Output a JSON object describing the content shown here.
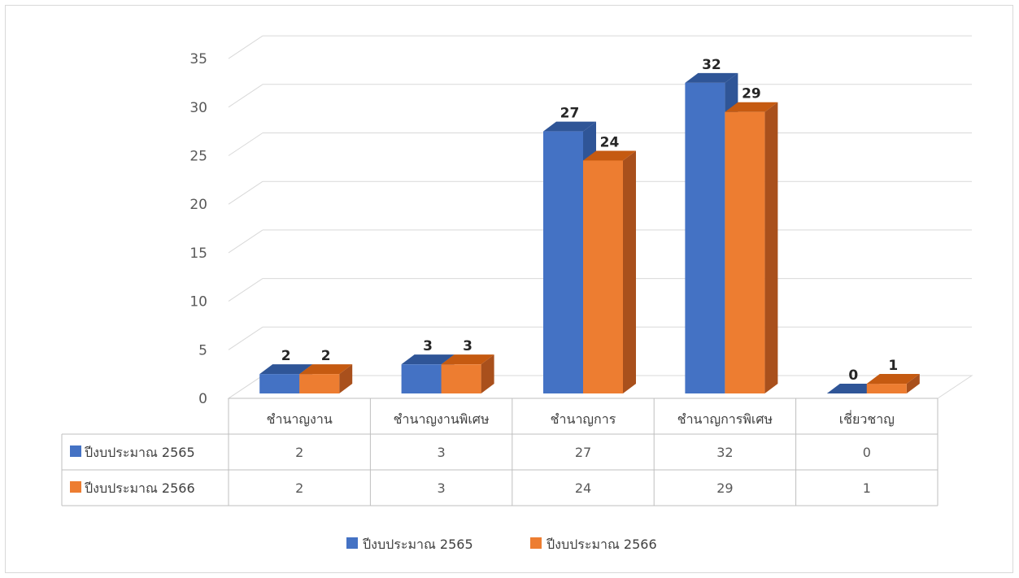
{
  "colors": {
    "series1": "#4472C4",
    "series1_top": "#2F5597",
    "series1_side": "#2F5597",
    "series2": "#ED7D31",
    "series2_top": "#C55A11",
    "series2_side": "#A9501C",
    "grid": "#d9d9d9"
  },
  "chart_data": {
    "type": "bar",
    "style": "3d-clustered-column with data table",
    "categories": [
      "ชำนาญงาน",
      "ชำนาญงานพิเศษ",
      "ชำนาญการ",
      "ชำนาญการพิเศษ",
      "เชี่ยวชาญ"
    ],
    "series": [
      {
        "name": "ปีงบประมาณ 2565",
        "values": [
          2,
          3,
          27,
          32,
          0
        ]
      },
      {
        "name": "ปีงบประมาณ 2566",
        "values": [
          2,
          3,
          24,
          29,
          1
        ]
      }
    ],
    "ylim": [
      0,
      35
    ],
    "yticks": [
      0,
      5,
      10,
      15,
      20,
      25,
      30,
      35
    ],
    "grid": true,
    "legend_position": "bottom"
  }
}
